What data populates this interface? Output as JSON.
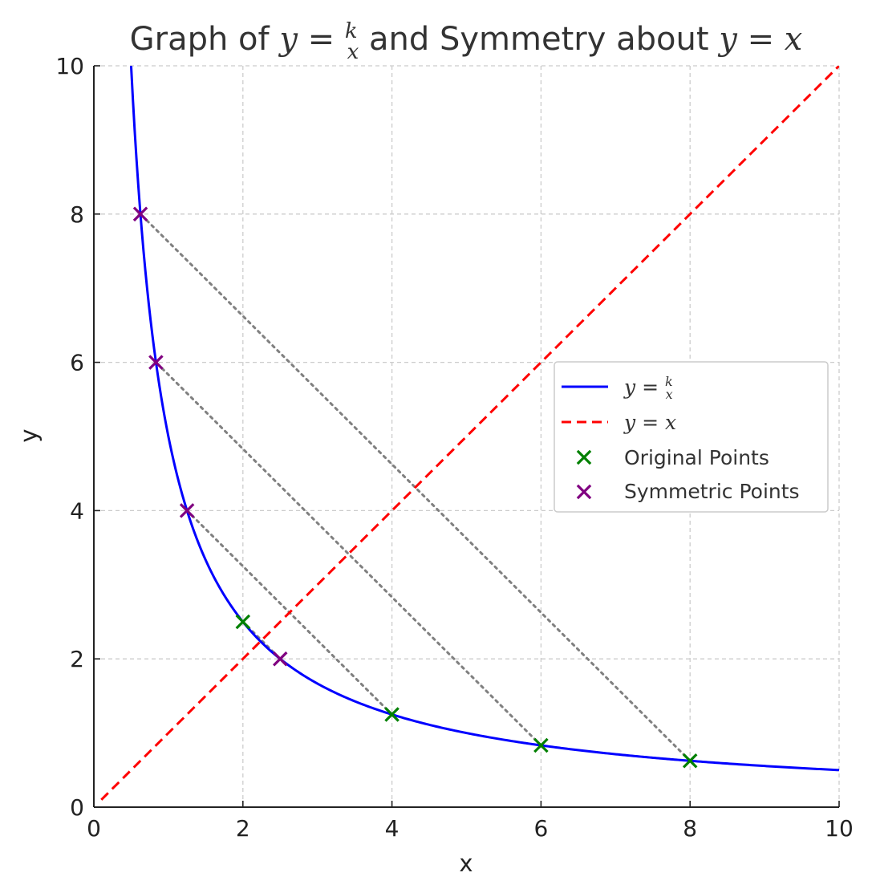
{
  "chart_data": {
    "type": "line",
    "title": {
      "prefix": "Graph of ",
      "expr_y": "y",
      "expr_eq": " = ",
      "frac_num": "k",
      "frac_den": "x",
      "middle": " and Symmetry about ",
      "line_expr": "y = x"
    },
    "xlabel": "x",
    "ylabel": "y",
    "xlim": [
      0,
      10
    ],
    "ylim": [
      0,
      10
    ],
    "xticks": [
      0,
      2,
      4,
      6,
      8,
      10
    ],
    "yticks": [
      0,
      2,
      4,
      6,
      8,
      10
    ],
    "grid": true,
    "k": 5,
    "series": [
      {
        "name": "y = k/x",
        "kind": "curve",
        "color": "#0000ff",
        "style": "solid",
        "x_range": [
          0.5,
          10
        ]
      },
      {
        "name": "y = x",
        "kind": "line",
        "color": "#ff0000",
        "style": "dashed",
        "x_range": [
          0.1,
          10
        ]
      }
    ],
    "original_points": {
      "name": "Original Points",
      "color": "#008000",
      "marker": "x",
      "points": [
        [
          2,
          2.5
        ],
        [
          4,
          1.25
        ],
        [
          6,
          0.833
        ],
        [
          8,
          0.625
        ]
      ]
    },
    "symmetric_points": {
      "name": "Symmetric Points",
      "color": "#800080",
      "marker": "x",
      "points": [
        [
          2.5,
          2
        ],
        [
          1.25,
          4
        ],
        [
          0.833,
          6
        ],
        [
          0.625,
          8
        ]
      ]
    },
    "connectors": {
      "color": "#808080",
      "style": "dotted",
      "pairs": [
        [
          [
            2,
            2.5
          ],
          [
            2.5,
            2
          ]
        ],
        [
          [
            4,
            1.25
          ],
          [
            1.25,
            4
          ]
        ],
        [
          [
            6,
            0.833
          ],
          [
            0.833,
            6
          ]
        ],
        [
          [
            8,
            0.625
          ],
          [
            0.625,
            8
          ]
        ]
      ]
    },
    "legend": {
      "position": "center-right",
      "entries": [
        {
          "type": "line",
          "color": "#0000ff",
          "dash": "solid",
          "math_y": "y",
          "math_eq": " = ",
          "frac_num": "k",
          "frac_den": "x"
        },
        {
          "type": "line",
          "color": "#ff0000",
          "dash": "dashed",
          "math_text": "y = x"
        },
        {
          "type": "marker",
          "color": "#008000",
          "label": "Original Points"
        },
        {
          "type": "marker",
          "color": "#800080",
          "label": "Symmetric Points"
        }
      ]
    }
  }
}
